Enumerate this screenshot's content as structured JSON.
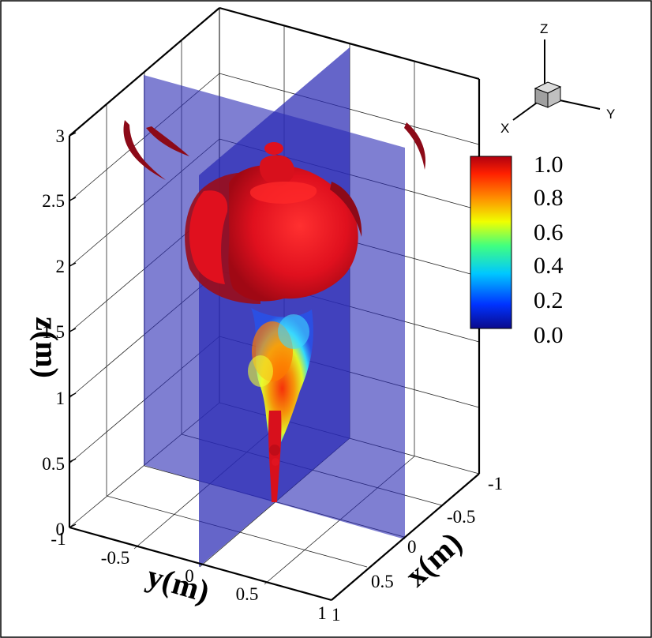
{
  "axes": {
    "z": {
      "title": "z(m)",
      "ticks": [
        "0",
        "0.5",
        "1",
        "1.5",
        "2",
        "2.5",
        "3"
      ]
    },
    "y": {
      "title": "y(m)",
      "ticks": [
        "-1",
        "-0.5",
        "0",
        "0.5",
        "1"
      ]
    },
    "x": {
      "title": "x(m)",
      "ticks": [
        "-1",
        "-0.5",
        "0",
        "0.5",
        "1"
      ]
    }
  },
  "colorbar": {
    "labels": [
      "1.0",
      "0.8",
      "0.6",
      "0.4",
      "0.2",
      "0.0"
    ],
    "min": 0.0,
    "max": 1.0,
    "colors": [
      "#0a0a8c",
      "#0033ff",
      "#00c8ff",
      "#40ff80",
      "#f0ff00",
      "#ff8c00",
      "#ff2000",
      "#b00010"
    ]
  },
  "orientation": {
    "z_label": "Z",
    "x_label": "X",
    "y_label": "Y"
  },
  "colors": {
    "plane": "#2a2ab4",
    "isosurface": "#e0101e",
    "isosurface_dark": "#8c0a18"
  }
}
